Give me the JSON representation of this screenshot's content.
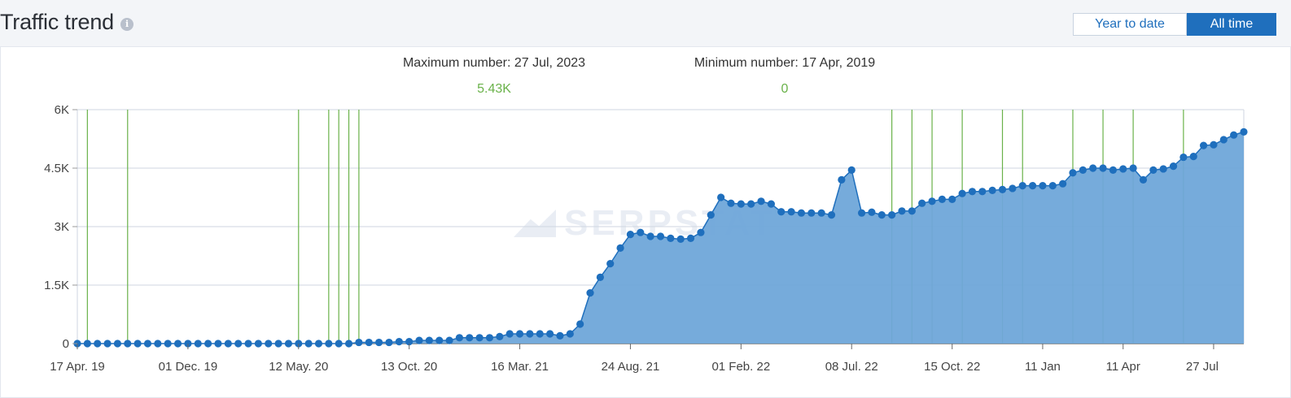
{
  "header": {
    "title": "Traffic trend",
    "info_icon": "info-icon",
    "toggle": [
      {
        "label": "Year to date",
        "active": false
      },
      {
        "label": "All time",
        "active": true
      }
    ]
  },
  "stats": {
    "max_label": "Maximum number: 27 Jul, 2023",
    "max_value": "5.43K",
    "min_label": "Minimum number: 17 Apr, 2019",
    "min_value": "0"
  },
  "watermark": "SERPSTAT",
  "colors": {
    "area": "#6fa6d9",
    "line": "#1f6fbd",
    "point": "#1f6fbd",
    "event_line": "#6ab24a",
    "grid": "#cfd6e2"
  },
  "chart_data": {
    "type": "area",
    "xlabel": "",
    "ylabel": "",
    "ylim": [
      0,
      6000
    ],
    "yticks": [
      {
        "value": 0,
        "label": "0"
      },
      {
        "value": 1500,
        "label": "1.5K"
      },
      {
        "value": 3000,
        "label": "3K"
      },
      {
        "value": 4500,
        "label": "4.5K"
      },
      {
        "value": 6000,
        "label": "6K"
      }
    ],
    "xticks": [
      {
        "index": 0,
        "label": "17 Apr. 19"
      },
      {
        "index": 11,
        "label": "01 Dec. 19"
      },
      {
        "index": 22,
        "label": "12 May. 20"
      },
      {
        "index": 33,
        "label": "13 Oct. 20"
      },
      {
        "index": 44,
        "label": "16 Mar. 21"
      },
      {
        "index": 55,
        "label": "24 Aug. 21"
      },
      {
        "index": 66,
        "label": "01 Feb. 22"
      },
      {
        "index": 77,
        "label": "08 Jul. 22"
      },
      {
        "index": 87,
        "label": "15 Oct. 22"
      },
      {
        "index": 96,
        "label": "11 Jan"
      },
      {
        "index": 104,
        "label": "11 Apr"
      },
      {
        "index": 113,
        "label": "27 Jul"
      }
    ],
    "event_indices": [
      1,
      5,
      22,
      25,
      26,
      27,
      28,
      81,
      83,
      85,
      88,
      92,
      94,
      99,
      102,
      105,
      110
    ],
    "values": [
      0,
      0,
      0,
      0,
      0,
      0,
      0,
      0,
      0,
      0,
      0,
      0,
      0,
      0,
      0,
      0,
      0,
      0,
      0,
      0,
      0,
      0,
      0,
      0,
      0,
      0,
      0,
      0,
      30,
      30,
      30,
      30,
      50,
      50,
      80,
      80,
      80,
      80,
      150,
      150,
      150,
      150,
      180,
      250,
      250,
      250,
      250,
      250,
      200,
      250,
      500,
      1300,
      1700,
      2050,
      2450,
      2800,
      2850,
      2750,
      2750,
      2700,
      2680,
      2700,
      2850,
      3300,
      3750,
      3600,
      3580,
      3580,
      3650,
      3580,
      3380,
      3380,
      3350,
      3350,
      3350,
      3300,
      4200,
      4450,
      3350,
      3370,
      3300,
      3300,
      3400,
      3400,
      3600,
      3650,
      3700,
      3700,
      3850,
      3900,
      3900,
      3930,
      3950,
      3980,
      4050,
      4050,
      4050,
      4050,
      4100,
      4380,
      4450,
      4500,
      4500,
      4450,
      4480,
      4500,
      4200,
      4450,
      4480,
      4550,
      4780,
      4800,
      5080,
      5100,
      5230,
      5350,
      5430
    ]
  }
}
